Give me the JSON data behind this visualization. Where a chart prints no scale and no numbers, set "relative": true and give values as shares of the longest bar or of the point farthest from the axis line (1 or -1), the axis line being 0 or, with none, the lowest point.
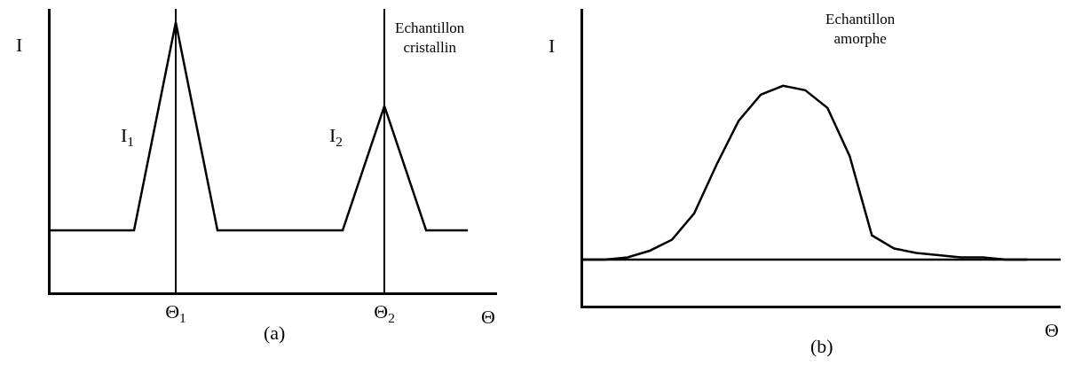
{
  "chart_data": [
    {
      "type": "line",
      "relative": true,
      "xlabel": "Θ",
      "ylabel": "I",
      "grid": "x",
      "marker": "none",
      "line_style": "solid",
      "categories": [
        null,
        null,
        null,
        "Θ$_{1}$",
        null,
        null,
        null,
        null,
        "Θ$_{2}$",
        null,
        null
      ],
      "series": [
        {
          "color": "#000000",
          "values": [
            0.23,
            0.23,
            0.23,
            1,
            0.23,
            0.23,
            0.23,
            0.23,
            0.69,
            0.23,
            0.23
          ]
        }
      ],
      "annotations": [
        "Echantillon cristallin",
        "(a)",
        "I$_{1}$",
        "I$_{2}$"
      ]
    },
    {
      "type": "line",
      "relative": true,
      "xlabel": "Θ",
      "ylabel": "I",
      "marker": "none",
      "line_style": "solid",
      "categories": [
        null,
        null,
        null,
        null,
        null,
        null,
        null,
        null,
        null,
        null,
        null,
        null,
        null,
        null,
        null,
        null,
        null,
        null,
        null,
        null,
        null
      ],
      "series": [
        {
          "color": "#000000",
          "values": [
            0.21,
            0.21,
            0.22,
            0.25,
            0.3,
            0.42,
            0.64,
            0.84,
            0.96,
            1.0,
            0.98,
            0.9,
            0.68,
            0.32,
            0.26,
            0.24,
            0.23,
            0.22,
            0.22,
            0.21,
            0.21
          ]
        }
      ],
      "ref_lines": [
        {
          "axis": "y",
          "value": 0.21
        }
      ],
      "annotations": [
        "Echantillon amorphe",
        "(b)"
      ]
    }
  ]
}
